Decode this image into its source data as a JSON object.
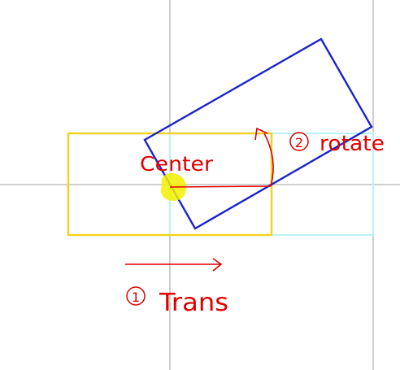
{
  "labels": {
    "center": "Center",
    "step_rotate_num": "2",
    "step_rotate": "rotate",
    "step_trans_num": "1",
    "step_trans": "Trans"
  },
  "colors": {
    "axis": "#b4b4b4",
    "original_rect": "#f2d21c",
    "translated_rect": "#b8f4f4",
    "rotated_rect": "#1a24c8",
    "annotation": "#e00000",
    "center_marker": "#f4f000",
    "background": "#ffffff"
  }
}
